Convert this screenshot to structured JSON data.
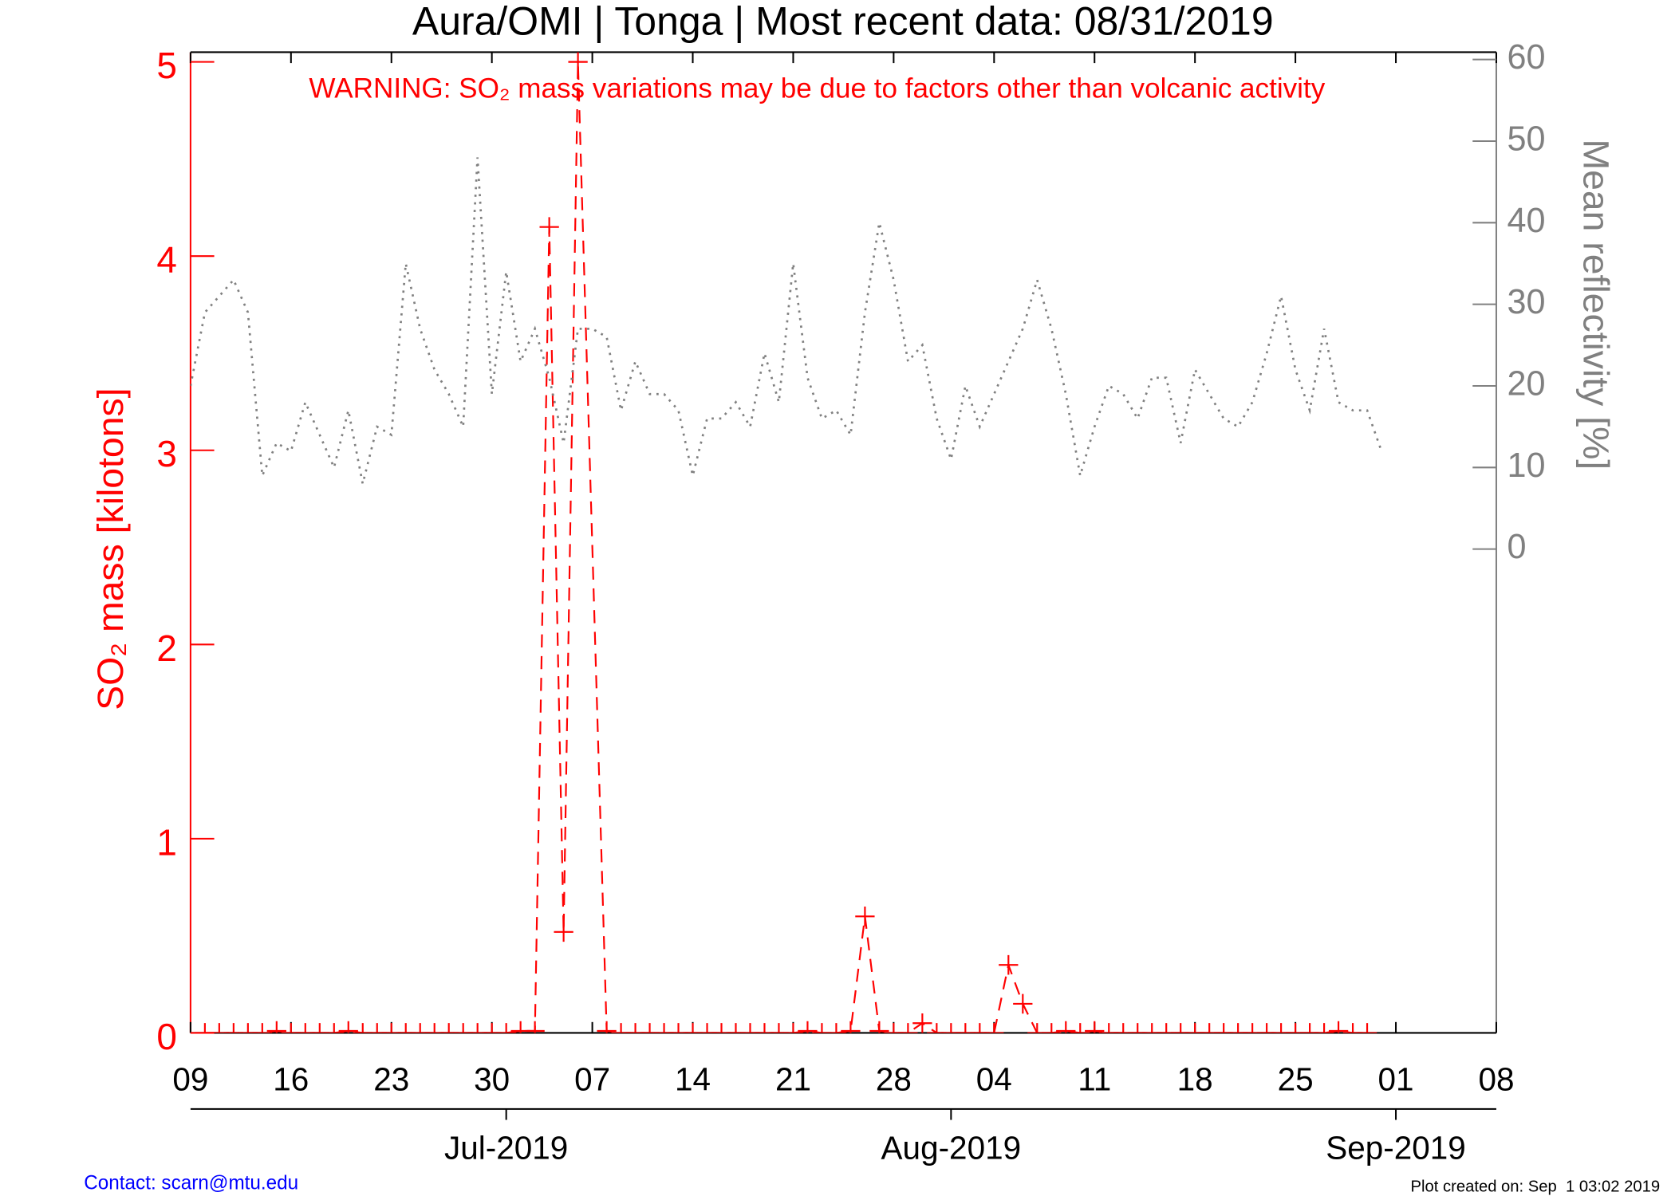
{
  "chart_data": {
    "type": "line",
    "title": "Aura/OMI | Tonga | Most recent data: 08/31/2019",
    "annotation": "WARNING: SO₂ mass variations may be due to factors other than volcanic activity",
    "y_label": "SO₂ mass [kilotons]",
    "y2_label": "Mean reflectivity [%]",
    "contact": "Contact: scarn@mtu.edu",
    "created": "Plot created on: Sep  1 03:02 2019",
    "xlim": [
      "2019-06-09",
      "2019-09-08"
    ],
    "xticks": [
      {
        "value": "2019-06-09",
        "label": "09"
      },
      {
        "value": "2019-06-16",
        "label": "16"
      },
      {
        "value": "2019-06-23",
        "label": "23"
      },
      {
        "value": "2019-06-30",
        "label": "30"
      },
      {
        "value": "2019-07-07",
        "label": "07"
      },
      {
        "value": "2019-07-14",
        "label": "14"
      },
      {
        "value": "2019-07-21",
        "label": "21"
      },
      {
        "value": "2019-07-28",
        "label": "28"
      },
      {
        "value": "2019-08-04",
        "label": "04"
      },
      {
        "value": "2019-08-11",
        "label": "11"
      },
      {
        "value": "2019-08-18",
        "label": "18"
      },
      {
        "value": "2019-08-25",
        "label": "25"
      },
      {
        "value": "2019-09-01",
        "label": "01"
      },
      {
        "value": "2019-09-08",
        "label": "08"
      }
    ],
    "month_ticks": [
      {
        "value": "2019-07-01",
        "label": "Jul-2019"
      },
      {
        "value": "2019-08-01",
        "label": "Aug-2019"
      },
      {
        "value": "2019-09-01",
        "label": "Sep-2019"
      }
    ],
    "ylim": [
      0,
      5.05
    ],
    "yticks": [
      0,
      1,
      2,
      3,
      4,
      5
    ],
    "y2lim": [
      -59.3,
      60.9
    ],
    "y2ticks": [
      0,
      10,
      20,
      30,
      40,
      50,
      60
    ],
    "series": [
      {
        "name": "SO₂ mass",
        "color": "#ff0000",
        "marker": "+",
        "dash": "dashed",
        "x": [
          "2019-06-10",
          "2019-06-11",
          "2019-06-12",
          "2019-06-13",
          "2019-06-14",
          "2019-06-15",
          "2019-06-16",
          "2019-06-17",
          "2019-06-18",
          "2019-06-19",
          "2019-06-20",
          "2019-06-21",
          "2019-06-22",
          "2019-06-23",
          "2019-06-24",
          "2019-06-25",
          "2019-06-26",
          "2019-06-27",
          "2019-06-28",
          "2019-06-29",
          "2019-06-30",
          "2019-07-01",
          "2019-07-02",
          "2019-07-03",
          "2019-07-04",
          "2019-07-05",
          "2019-07-06",
          "2019-07-08",
          "2019-07-09",
          "2019-07-10",
          "2019-07-11",
          "2019-07-12",
          "2019-07-13",
          "2019-07-14",
          "2019-07-15",
          "2019-07-16",
          "2019-07-17",
          "2019-07-18",
          "2019-07-19",
          "2019-07-20",
          "2019-07-21",
          "2019-07-22",
          "2019-07-23",
          "2019-07-24",
          "2019-07-25",
          "2019-07-26",
          "2019-07-27",
          "2019-07-28",
          "2019-07-29",
          "2019-07-30",
          "2019-07-31",
          "2019-08-01",
          "2019-08-02",
          "2019-08-03",
          "2019-08-04",
          "2019-08-05",
          "2019-08-06",
          "2019-08-07",
          "2019-08-08",
          "2019-08-09",
          "2019-08-10",
          "2019-08-11",
          "2019-08-12",
          "2019-08-13",
          "2019-08-14",
          "2019-08-15",
          "2019-08-16",
          "2019-08-17",
          "2019-08-18",
          "2019-08-19",
          "2019-08-20",
          "2019-08-21",
          "2019-08-22",
          "2019-08-23",
          "2019-08-24",
          "2019-08-25",
          "2019-08-26",
          "2019-08-27",
          "2019-08-28",
          "2019-08-29",
          "2019-08-30"
        ],
        "values": [
          0,
          0,
          0,
          0,
          0,
          0.01,
          0,
          0,
          0,
          0,
          0.01,
          0,
          0,
          0,
          0,
          0,
          0,
          0,
          0,
          0,
          0,
          0,
          0.01,
          0.01,
          4.15,
          0.52,
          5.0,
          0.01,
          0,
          0,
          0,
          0,
          0,
          0,
          0,
          0,
          0,
          0,
          0,
          0,
          0,
          0.01,
          0,
          0,
          0.01,
          0.6,
          0.01,
          0,
          0,
          0.05,
          0,
          0,
          0,
          0,
          0,
          0.35,
          0.15,
          0,
          0,
          0.01,
          0,
          0.01,
          0,
          0,
          0,
          0,
          0,
          0,
          0,
          0,
          0,
          0,
          0,
          0,
          0,
          0,
          0,
          0,
          0.01,
          0,
          0
        ]
      },
      {
        "name": "Mean reflectivity",
        "color": "#808080",
        "axis": "y2",
        "dash": "dotted",
        "x": [
          "2019-06-09",
          "2019-06-10",
          "2019-06-11",
          "2019-06-12",
          "2019-06-13",
          "2019-06-14",
          "2019-06-15",
          "2019-06-16",
          "2019-06-17",
          "2019-06-18",
          "2019-06-19",
          "2019-06-20",
          "2019-06-21",
          "2019-06-22",
          "2019-06-23",
          "2019-06-24",
          "2019-06-25",
          "2019-06-26",
          "2019-06-27",
          "2019-06-28",
          "2019-06-29",
          "2019-06-30",
          "2019-07-01",
          "2019-07-02",
          "2019-07-03",
          "2019-07-04",
          "2019-07-05",
          "2019-07-06",
          "2019-07-07",
          "2019-07-08",
          "2019-07-09",
          "2019-07-10",
          "2019-07-11",
          "2019-07-12",
          "2019-07-13",
          "2019-07-14",
          "2019-07-15",
          "2019-07-16",
          "2019-07-17",
          "2019-07-18",
          "2019-07-19",
          "2019-07-20",
          "2019-07-21",
          "2019-07-22",
          "2019-07-23",
          "2019-07-24",
          "2019-07-25",
          "2019-07-26",
          "2019-07-27",
          "2019-07-28",
          "2019-07-29",
          "2019-07-30",
          "2019-07-31",
          "2019-08-01",
          "2019-08-02",
          "2019-08-03",
          "2019-08-04",
          "2019-08-05",
          "2019-08-06",
          "2019-08-07",
          "2019-08-08",
          "2019-08-09",
          "2019-08-10",
          "2019-08-11",
          "2019-08-12",
          "2019-08-13",
          "2019-08-14",
          "2019-08-15",
          "2019-08-16",
          "2019-08-17",
          "2019-08-18",
          "2019-08-19",
          "2019-08-20",
          "2019-08-21",
          "2019-08-22",
          "2019-08-23",
          "2019-08-24",
          "2019-08-25",
          "2019-08-26",
          "2019-08-27",
          "2019-08-28",
          "2019-08-29",
          "2019-08-30",
          "2019-08-31"
        ],
        "values": [
          20,
          29,
          31,
          33,
          29,
          9,
          13,
          12,
          18,
          14,
          10,
          17,
          8,
          15,
          14,
          35,
          27,
          22,
          19,
          15,
          48,
          19,
          34,
          23,
          27,
          21,
          13,
          27,
          27,
          26,
          17,
          23,
          19,
          19,
          17,
          9,
          16,
          16,
          18,
          15,
          24,
          18,
          35,
          21,
          16,
          17,
          14,
          29,
          40,
          33,
          23,
          25,
          16,
          11,
          20,
          15,
          19,
          23,
          27,
          33,
          27,
          19,
          9,
          15,
          20,
          19,
          16,
          21,
          21,
          13,
          22,
          19,
          16,
          15,
          18,
          24,
          31,
          22,
          17,
          27,
          18,
          17,
          17,
          12
        ]
      }
    ]
  }
}
